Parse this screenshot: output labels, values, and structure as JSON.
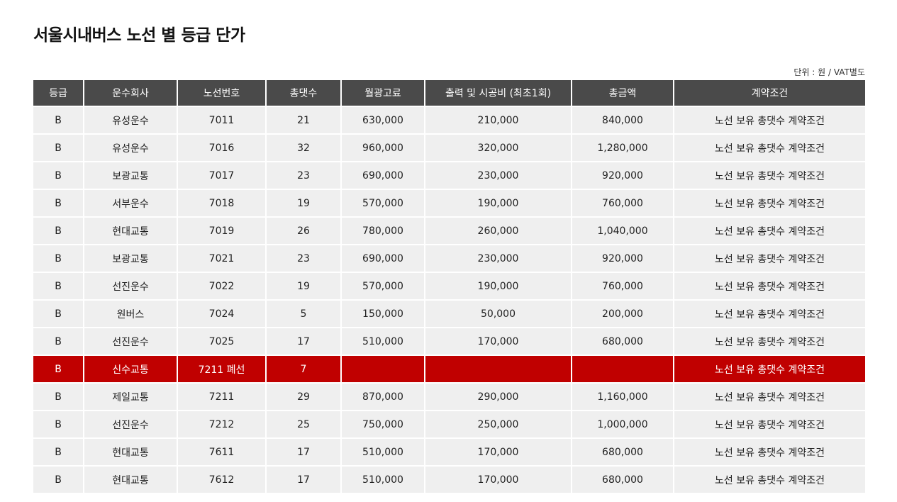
{
  "title": "서울시내버스 노선 별 등급 단가",
  "unit_note": "단위 : 원 / VAT별도",
  "colors": {
    "header_bg": "#4a4a4a",
    "row_bg": "#efefef",
    "highlight_bg": "#c00000"
  },
  "table": {
    "headers": [
      "등급",
      "운수회사",
      "노선번호",
      "총댓수",
      "월광고료",
      "출력 및 시공비 (최초1회)",
      "총금액",
      "계약조건"
    ],
    "rows": [
      {
        "grade": "B",
        "company": "유성운수",
        "route": "7011",
        "buses": "21",
        "monthly_fee": "630,000",
        "production_fee": "210,000",
        "total": "840,000",
        "condition": "노선 보유 총댓수 계약조건",
        "highlight": false
      },
      {
        "grade": "B",
        "company": "유성운수",
        "route": "7016",
        "buses": "32",
        "monthly_fee": "960,000",
        "production_fee": "320,000",
        "total": "1,280,000",
        "condition": "노선 보유 총댓수 계약조건",
        "highlight": false
      },
      {
        "grade": "B",
        "company": "보광교통",
        "route": "7017",
        "buses": "23",
        "monthly_fee": "690,000",
        "production_fee": "230,000",
        "total": "920,000",
        "condition": "노선 보유 총댓수 계약조건",
        "highlight": false
      },
      {
        "grade": "B",
        "company": "서부운수",
        "route": "7018",
        "buses": "19",
        "monthly_fee": "570,000",
        "production_fee": "190,000",
        "total": "760,000",
        "condition": "노선 보유 총댓수 계약조건",
        "highlight": false
      },
      {
        "grade": "B",
        "company": "현대교통",
        "route": "7019",
        "buses": "26",
        "monthly_fee": "780,000",
        "production_fee": "260,000",
        "total": "1,040,000",
        "condition": "노선 보유 총댓수 계약조건",
        "highlight": false
      },
      {
        "grade": "B",
        "company": "보광교통",
        "route": "7021",
        "buses": "23",
        "monthly_fee": "690,000",
        "production_fee": "230,000",
        "total": "920,000",
        "condition": "노선 보유 총댓수 계약조건",
        "highlight": false
      },
      {
        "grade": "B",
        "company": "선진운수",
        "route": "7022",
        "buses": "19",
        "monthly_fee": "570,000",
        "production_fee": "190,000",
        "total": "760,000",
        "condition": "노선 보유 총댓수 계약조건",
        "highlight": false
      },
      {
        "grade": "B",
        "company": "원버스",
        "route": "7024",
        "buses": "5",
        "monthly_fee": "150,000",
        "production_fee": "50,000",
        "total": "200,000",
        "condition": "노선 보유 총댓수 계약조건",
        "highlight": false
      },
      {
        "grade": "B",
        "company": "선진운수",
        "route": "7025",
        "buses": "17",
        "monthly_fee": "510,000",
        "production_fee": "170,000",
        "total": "680,000",
        "condition": "노선 보유 총댓수 계약조건",
        "highlight": false
      },
      {
        "grade": "B",
        "company": "신수교통",
        "route": "7211 폐선",
        "buses": "7",
        "monthly_fee": "",
        "production_fee": "",
        "total": "",
        "condition": "노선 보유 총댓수 계약조건",
        "highlight": true
      },
      {
        "grade": "B",
        "company": "제일교통",
        "route": "7211",
        "buses": "29",
        "monthly_fee": "870,000",
        "production_fee": "290,000",
        "total": "1,160,000",
        "condition": "노선 보유 총댓수 계약조건",
        "highlight": false
      },
      {
        "grade": "B",
        "company": "선진운수",
        "route": "7212",
        "buses": "25",
        "monthly_fee": "750,000",
        "production_fee": "250,000",
        "total": "1,000,000",
        "condition": "노선 보유 총댓수 계약조건",
        "highlight": false
      },
      {
        "grade": "B",
        "company": "현대교통",
        "route": "7611",
        "buses": "17",
        "monthly_fee": "510,000",
        "production_fee": "170,000",
        "total": "680,000",
        "condition": "노선 보유 총댓수 계약조건",
        "highlight": false
      },
      {
        "grade": "B",
        "company": "현대교통",
        "route": "7612",
        "buses": "17",
        "monthly_fee": "510,000",
        "production_fee": "170,000",
        "total": "680,000",
        "condition": "노선 보유 총댓수 계약조건",
        "highlight": false
      }
    ]
  }
}
